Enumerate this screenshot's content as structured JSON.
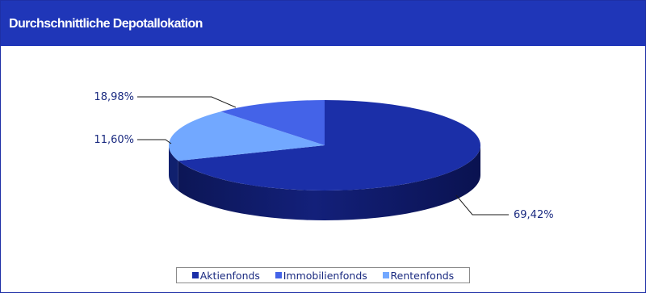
{
  "header": {
    "title": "Durchschnittliche Depotallokation"
  },
  "chart_data": {
    "type": "pie",
    "title": "Durchschnittliche Depotallokation",
    "series": [
      {
        "name": "Aktienfonds",
        "value": 69.42,
        "label": "69,42%",
        "color": "#1b2fa8"
      },
      {
        "name": "Immobilienfonds",
        "value": 11.6,
        "label": "11,60%",
        "color": "#4463e8"
      },
      {
        "name": "Rentenfonds",
        "value": 18.98,
        "label": "18,98%",
        "color": "#72a8ff"
      }
    ],
    "legend": {
      "position": "bottom",
      "items": [
        "Aktienfonds",
        "Immobilienfonds",
        "Rentenfonds"
      ]
    },
    "style": "3d"
  }
}
